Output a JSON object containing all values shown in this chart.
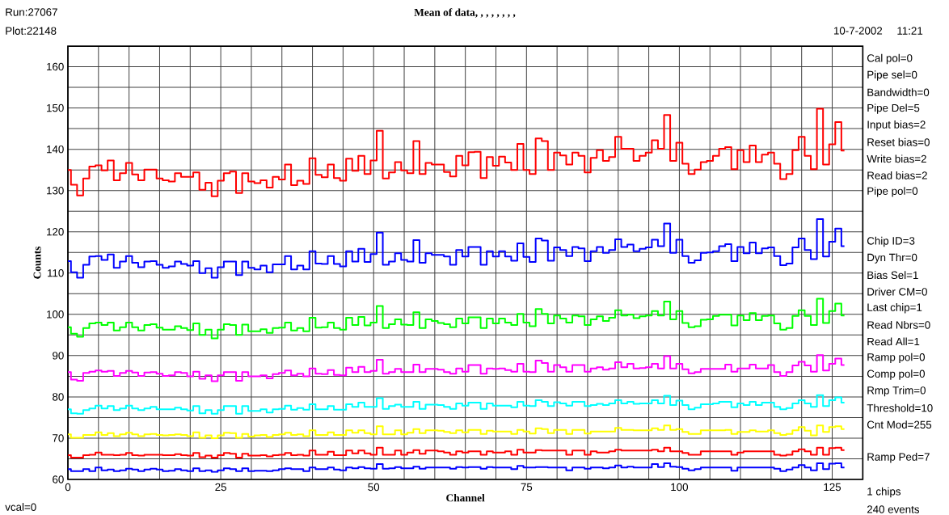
{
  "chart_data": {
    "type": "step",
    "title": "Mean of data, , , , , , , ,",
    "xlabel": "Channel",
    "ylabel": "Counts",
    "annotations": [
      "Run:27067",
      "Plot:22148",
      "10-7-2002",
      "11:21",
      "Cal pol=0",
      "Pipe sel=0",
      "Bandwidth=0",
      "Pipe Del=5",
      "Input bias=2",
      "Reset bias=0",
      "Write bias=2",
      "Read bias=2",
      "Pipe pol=0",
      "Chip ID=3",
      "Dyn Thr=0",
      "Bias Sel=1",
      "Driver CM=0",
      "Last chip=1",
      "Read Nbrs=0",
      "Read All=1",
      "Ramp pol=0",
      "Comp pol=0",
      "Rmp Trim=0",
      "Threshold=10",
      "Cnt Mod=255",
      "Ramp Ped=7",
      "1 chips",
      "240 events",
      "vcal=0"
    ],
    "x": [
      0,
      1,
      2,
      3,
      4,
      5,
      6,
      7,
      8,
      9,
      10,
      11,
      12,
      13,
      14,
      15,
      16,
      17,
      18,
      19,
      20,
      21,
      22,
      23,
      24,
      25,
      26,
      27,
      28,
      29,
      30,
      31,
      32,
      33,
      34,
      35,
      36,
      37,
      38,
      39,
      40,
      41,
      42,
      43,
      44,
      45,
      46,
      47,
      48,
      49,
      50,
      51,
      52,
      53,
      54,
      55,
      56,
      57,
      58,
      59,
      60,
      61,
      62,
      63,
      64,
      65,
      66,
      67,
      68,
      69,
      70,
      71,
      72,
      73,
      74,
      75,
      76,
      77,
      78,
      79,
      80,
      81,
      82,
      83,
      84,
      85,
      86,
      87,
      88,
      89,
      90,
      91,
      92,
      93,
      94,
      95,
      96,
      97,
      98,
      99,
      100,
      101,
      102,
      103,
      104,
      105,
      106,
      107,
      108,
      109,
      110,
      111,
      112,
      113,
      114,
      115,
      116,
      117,
      118,
      119,
      120,
      121,
      122,
      123,
      124,
      125,
      126,
      127
    ],
    "xlim": [
      0,
      130
    ],
    "ylim": [
      60,
      165
    ],
    "xticks": [
      0,
      {
        "value": 5,
        "label": null
      },
      {
        "value": 10,
        "label": null
      },
      {
        "value": 15,
        "label": null
      },
      {
        "value": 20,
        "label": null
      },
      25,
      {
        "value": 30,
        "label": null
      },
      {
        "value": 35,
        "label": null
      },
      {
        "value": 40,
        "label": null
      },
      {
        "value": 45,
        "label": null
      },
      50,
      {
        "value": 55,
        "label": null
      },
      {
        "value": 60,
        "label": null
      },
      {
        "value": 65,
        "label": null
      },
      {
        "value": 70,
        "label": null
      },
      75,
      {
        "value": 80,
        "label": null
      },
      {
        "value": 85,
        "label": null
      },
      {
        "value": 90,
        "label": null
      },
      {
        "value": 95,
        "label": null
      },
      100,
      {
        "value": 105,
        "label": null
      },
      {
        "value": 110,
        "label": null
      },
      {
        "value": 115,
        "label": null
      },
      {
        "value": 120,
        "label": null
      },
      125
    ],
    "yticks": [
      60,
      {
        "value": 65,
        "label": null
      },
      70,
      {
        "value": 75,
        "label": null
      },
      80,
      {
        "value": 85,
        "label": null
      },
      90,
      {
        "value": 95,
        "label": null
      },
      100,
      {
        "value": 105,
        "label": null
      },
      110,
      {
        "value": 115,
        "label": null
      },
      120,
      {
        "value": 125,
        "label": null
      },
      130,
      {
        "value": 135,
        "label": null
      },
      140,
      {
        "value": 145,
        "label": null
      },
      150,
      {
        "value": 155,
        "label": null
      },
      160
    ],
    "grid": true,
    "series": [
      {
        "color": "#ff0000",
        "values": [
          135,
          131.4,
          128.8,
          132.9,
          135.8,
          136.1,
          134.9,
          137.3,
          132.5,
          134.2,
          136.7,
          133.9,
          132.5,
          135.1,
          135.1,
          132.9,
          132.5,
          132.2,
          134.2,
          133.3,
          133.3,
          134.4,
          130.2,
          131.9,
          128.6,
          132.4,
          134.2,
          134.6,
          129.4,
          134.2,
          132.2,
          131.8,
          132.5,
          130.7,
          133.3,
          132.7,
          136.3,
          131.3,
          132.4,
          131.6,
          137.8,
          133.8,
          133.2,
          136.3,
          133,
          132.4,
          137.7,
          134.8,
          138.4,
          134,
          137.3,
          144.5,
          132.9,
          134.4,
          136.9,
          134.9,
          134.2,
          142,
          134,
          136.7,
          136.3,
          136.3,
          134.5,
          133.4,
          138.4,
          136.1,
          139.3,
          139.4,
          133,
          138.1,
          136,
          138.2,
          136.8,
          135,
          141.3,
          135,
          134,
          142.6,
          142,
          135,
          139.2,
          138.5,
          136.3,
          139.2,
          138.4,
          134.4,
          137.9,
          139.8,
          137.2,
          138.1,
          143,
          140.1,
          140.1,
          137.2,
          138.4,
          139.2,
          142.2,
          140.1,
          148.3,
          137.2,
          141.6,
          136.5,
          134,
          135.1,
          136.9,
          137.2,
          138.4,
          140.1,
          140.5,
          135.2,
          139.8,
          136.9,
          140.9,
          136.9,
          138.7,
          139.2,
          136.5,
          132.8,
          134,
          139.8,
          143,
          138.4,
          135.2,
          149.8,
          136.3,
          141.2,
          146.6,
          139.7
        ]
      },
      {
        "color": "#0000ff",
        "values": [
          112.9,
          110.2,
          108.9,
          112,
          114,
          114.1,
          113.2,
          114.5,
          111.3,
          112.8,
          114.1,
          112.5,
          111.4,
          112.8,
          112.9,
          112,
          111.3,
          111.6,
          112.8,
          112.2,
          111.8,
          112.9,
          110,
          111.2,
          108.9,
          111.4,
          112.8,
          112.8,
          109.5,
          112.8,
          111.3,
          110.9,
          111.8,
          110.2,
          112.1,
          112.1,
          114.1,
          110.9,
          111.8,
          110.9,
          115.3,
          112.3,
          112.2,
          114.1,
          112.2,
          111.6,
          115.3,
          112.8,
          115.9,
          112.7,
          114.6,
          119.8,
          112,
          112.8,
          114.8,
          113.2,
          112.8,
          118,
          112.5,
          114.8,
          114.4,
          114.4,
          114,
          112,
          115.6,
          114,
          116.3,
          116.3,
          112,
          115.3,
          114,
          115.3,
          114,
          113,
          117.2,
          113.9,
          112.7,
          118.4,
          117.9,
          113,
          116.2,
          115.6,
          114.1,
          116.3,
          116,
          112.9,
          115.3,
          116.3,
          114.9,
          115.6,
          118.2,
          116.3,
          116.9,
          115.3,
          115.9,
          116.2,
          118.1,
          116.5,
          122,
          114.9,
          118.1,
          114.1,
          112.5,
          113.1,
          114.9,
          115,
          115.3,
          116.5,
          117,
          112.9,
          116.3,
          114.8,
          117.4,
          114.8,
          116,
          116.2,
          114.1,
          111.9,
          112.3,
          116.2,
          118.4,
          115.6,
          113.4,
          123.1,
          114,
          117.6,
          120.8,
          116.5
        ]
      },
      {
        "color": "#00ff00",
        "values": [
          96.9,
          95.3,
          94.6,
          96.7,
          97.8,
          98,
          97.4,
          98,
          96.1,
          96.9,
          98,
          96.9,
          96.1,
          97.4,
          97.6,
          96.8,
          96.3,
          96.3,
          97.1,
          96.7,
          96.2,
          97.8,
          95,
          96.3,
          94.2,
          96.3,
          97.6,
          97.4,
          95,
          97.5,
          95.9,
          95.9,
          96.4,
          95.5,
          96.7,
          96.8,
          98,
          96.1,
          96.7,
          95.9,
          99.2,
          96.8,
          96.9,
          98,
          96.7,
          96.3,
          99.2,
          97.4,
          99.4,
          97.3,
          98,
          102,
          96.7,
          97.6,
          98.8,
          97.5,
          97.4,
          100.5,
          96.7,
          98.8,
          98.4,
          97.9,
          97.6,
          96.9,
          99,
          97.8,
          99.3,
          99.3,
          96.7,
          99,
          97.8,
          99,
          98,
          97.4,
          100.1,
          98,
          97.1,
          101.3,
          100.1,
          97.8,
          99.7,
          99,
          98,
          99.7,
          99.5,
          97.4,
          98.8,
          99.5,
          98.4,
          99.2,
          101,
          99.7,
          99.9,
          99.1,
          99.5,
          99.7,
          100.8,
          99.7,
          103.1,
          98.8,
          100.8,
          97.9,
          96.9,
          97.1,
          98.7,
          98.8,
          99.6,
          99.9,
          99.9,
          97.3,
          99.7,
          98.6,
          100.3,
          98.6,
          99.6,
          99.7,
          97.8,
          96.3,
          96.7,
          99.6,
          101,
          99.6,
          97.4,
          103.8,
          97.9,
          100.8,
          102.6,
          99.7
        ]
      },
      {
        "color": "#ff00ff",
        "values": [
          86,
          84.2,
          83.9,
          85.8,
          86.1,
          86.4,
          86.1,
          86.3,
          85.1,
          85.8,
          86.3,
          85.9,
          85.1,
          85.9,
          86,
          85.6,
          85.1,
          85.2,
          86,
          85.8,
          85,
          86.1,
          84.4,
          85.2,
          83.8,
          85.2,
          86,
          86,
          83.9,
          86,
          85,
          85,
          85.2,
          84.5,
          85.5,
          85.8,
          86.4,
          85.2,
          85.6,
          85,
          86.9,
          85.6,
          85.5,
          86.5,
          85.3,
          85.2,
          87.1,
          86,
          87.3,
          86,
          86.3,
          89,
          85.6,
          86,
          86.8,
          86,
          86,
          87.8,
          86,
          86.8,
          86.8,
          86.6,
          86,
          85.6,
          86.9,
          86.1,
          87.7,
          87.7,
          85.6,
          86.9,
          86.8,
          86.9,
          86.5,
          86.1,
          88,
          86.1,
          86,
          88.8,
          88.2,
          86.1,
          87.7,
          87.2,
          86.1,
          87.7,
          87.7,
          86.1,
          86.9,
          87.2,
          86.6,
          86.9,
          88.4,
          87.2,
          88,
          86.9,
          87,
          87.2,
          88,
          86.9,
          89.9,
          86.9,
          88,
          86.7,
          85.7,
          86,
          86.8,
          86.8,
          86.8,
          86.8,
          87.8,
          86.1,
          86.9,
          86.9,
          87.8,
          86.9,
          86.9,
          87.7,
          86,
          85.1,
          86,
          87.6,
          88.5,
          87.6,
          86.1,
          90.1,
          86.4,
          88,
          89.3,
          87.7
        ]
      },
      {
        "color": "#00ffff",
        "values": [
          77,
          76,
          75.9,
          76.8,
          77.2,
          77.9,
          77.2,
          77.8,
          76.8,
          77.2,
          77.9,
          77.2,
          76.8,
          77.2,
          77.6,
          77,
          77,
          77,
          77.4,
          77,
          76.7,
          77.8,
          76,
          76.8,
          75.9,
          76.8,
          77.8,
          77.8,
          75.9,
          77.8,
          76.6,
          76.6,
          77,
          76.2,
          77,
          77.1,
          77.9,
          76.9,
          77.3,
          76.9,
          78.2,
          77,
          77,
          77.8,
          76.9,
          76.9,
          78.2,
          77.6,
          78.6,
          77.6,
          77.6,
          79.7,
          77.1,
          77.8,
          78.1,
          77.6,
          77.6,
          78.8,
          77.1,
          78.1,
          78.1,
          78,
          77.6,
          77.1,
          78.4,
          77.9,
          78.6,
          78.6,
          77.1,
          78.4,
          77.9,
          77.9,
          77.9,
          77.5,
          78.8,
          77.9,
          77.8,
          79.2,
          78.8,
          77.8,
          78.7,
          78.4,
          77.9,
          78.8,
          78.8,
          77.8,
          78,
          78.3,
          78,
          78.4,
          79.2,
          78.4,
          78.8,
          78.3,
          78.4,
          78.4,
          79.2,
          78.4,
          80.3,
          78,
          79.1,
          78,
          77,
          77.4,
          78.2,
          78.2,
          78.4,
          78.8,
          78.8,
          77.5,
          78.4,
          78,
          78.8,
          78,
          78.6,
          78.6,
          77.6,
          77,
          77.3,
          78.4,
          79.2,
          78.4,
          77.6,
          80.4,
          77.8,
          79.2,
          79.9,
          78.6
        ]
      },
      {
        "color": "#ffff00",
        "values": [
          70.9,
          70.1,
          70.1,
          70.8,
          70.8,
          71.4,
          70.8,
          71.2,
          70.5,
          70.9,
          71.3,
          70.9,
          70.5,
          70.9,
          71,
          70.8,
          70.7,
          70.8,
          70.9,
          70.8,
          70.5,
          71.4,
          70.1,
          70.7,
          70,
          70.7,
          71.3,
          71.2,
          70.1,
          71,
          70.4,
          70.7,
          70.8,
          70.3,
          70.8,
          70.9,
          71.3,
          70.8,
          70.9,
          70.5,
          71.9,
          70.8,
          70.8,
          71.4,
          70.8,
          70.8,
          71.9,
          71.3,
          71.9,
          71.2,
          70.9,
          72.9,
          70.9,
          70.9,
          71.9,
          70.9,
          71.3,
          72.2,
          71.2,
          71.9,
          71.9,
          71.8,
          71.5,
          71.2,
          71.9,
          71.4,
          72,
          72,
          71,
          71.8,
          71.6,
          71.6,
          71.6,
          71,
          72,
          71.6,
          71.1,
          72.4,
          72.2,
          71.2,
          72,
          72,
          71,
          72,
          72,
          71.1,
          71.6,
          71.6,
          71.6,
          71.6,
          72.5,
          72,
          72,
          71.9,
          71.9,
          71.9,
          72.4,
          72,
          73.1,
          72,
          72.2,
          71.5,
          71,
          71,
          71.9,
          71.9,
          71.9,
          71.9,
          72,
          71,
          71.5,
          71.5,
          71.9,
          71.6,
          71.6,
          71.9,
          71.2,
          70.8,
          71,
          71.9,
          72.7,
          71.8,
          70.7,
          73.1,
          71.5,
          72.7,
          72.9,
          72.2
        ]
      },
      {
        "color": "#ff0000",
        "values": [
          65.9,
          65.3,
          65.3,
          65.9,
          66,
          66.5,
          66,
          66,
          65.9,
          66,
          66.4,
          65.9,
          65.8,
          66,
          66,
          66,
          65.9,
          65.9,
          66.1,
          65.9,
          65.8,
          66.4,
          65.4,
          65.8,
          65.3,
          65.9,
          66.4,
          66.2,
          65.3,
          66.2,
          65.8,
          65.8,
          65.9,
          65.6,
          65.9,
          66,
          66.4,
          65.9,
          66,
          65.8,
          67,
          66,
          66,
          66.7,
          65.9,
          65.9,
          67,
          66.3,
          67,
          66.3,
          66,
          67.7,
          66,
          66,
          67,
          66,
          66.5,
          67.1,
          66.2,
          67,
          67,
          66.8,
          66.5,
          66,
          66.8,
          66.5,
          66.8,
          66.8,
          66,
          66.8,
          66.5,
          66.5,
          66.8,
          66,
          67.2,
          66.5,
          66.5,
          67.1,
          67,
          67,
          67,
          67,
          66,
          67,
          67,
          66,
          66.8,
          66.5,
          66.5,
          66.8,
          67.2,
          67,
          67,
          67,
          67,
          67,
          67.2,
          66.8,
          67.7,
          66.8,
          66.8,
          66.4,
          66,
          66,
          66.8,
          66.8,
          66.8,
          66.8,
          66.8,
          66,
          66.5,
          66.8,
          66.8,
          66.8,
          66.8,
          66.8,
          66,
          65.8,
          66,
          66.8,
          67.3,
          66.8,
          66,
          67.7,
          66,
          67.6,
          67.7,
          67.1
        ]
      },
      {
        "color": "#0000ff",
        "values": [
          62.5,
          62,
          62,
          62.5,
          62,
          62.9,
          62.2,
          62.4,
          62,
          62.2,
          62.6,
          62.4,
          62,
          62.4,
          62.6,
          62.4,
          62,
          62.1,
          62.5,
          62.2,
          62,
          62.7,
          62,
          62.2,
          61.8,
          62.2,
          62.7,
          62.5,
          62,
          62.7,
          62,
          62.1,
          62.1,
          62,
          62.2,
          62.5,
          62.7,
          62.5,
          62.5,
          62,
          62.9,
          62.5,
          62.5,
          62.9,
          62.4,
          62.2,
          62.9,
          62.7,
          63,
          62.7,
          62.6,
          63.7,
          62.6,
          62.7,
          63,
          62.7,
          62.7,
          63.1,
          62.6,
          62.9,
          62.9,
          62.9,
          62.9,
          62.6,
          63,
          62.9,
          63,
          63,
          62.6,
          63,
          62.9,
          62.9,
          62.9,
          62.5,
          63.3,
          62.9,
          62.9,
          63,
          63,
          62.9,
          62.9,
          62.9,
          62.2,
          62.9,
          62.9,
          62.6,
          62.9,
          62.9,
          62.7,
          62.9,
          63.4,
          62.9,
          63.1,
          62.9,
          62.9,
          62.9,
          63.7,
          63,
          63.9,
          63.1,
          63,
          62.6,
          62.2,
          62.5,
          62.9,
          62.9,
          62.9,
          62.9,
          62.9,
          62.1,
          62.9,
          62.9,
          62.9,
          62.9,
          62.9,
          62.9,
          62.6,
          62,
          62.4,
          62.9,
          63.5,
          62.9,
          62.2,
          63.9,
          62.5,
          63.8,
          63.9,
          62.9
        ]
      }
    ]
  }
}
